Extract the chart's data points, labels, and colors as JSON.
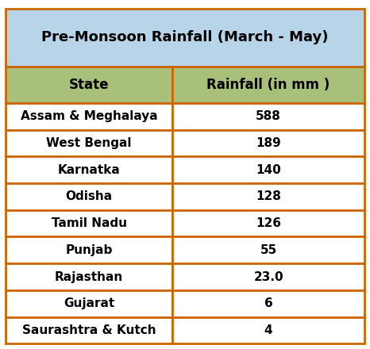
{
  "title": "Pre-Monsoon Rainfall (March - May)",
  "title_bg": "#b8d4e8",
  "header_bg": "#a8c07a",
  "row_bg": "#ffffff",
  "border_color": "#cc6600",
  "text_color": "#000000",
  "header_cols": [
    "State",
    "Rainfall (in mm )"
  ],
  "rows": [
    [
      "Assam & Meghalaya",
      "588"
    ],
    [
      "West Bengal",
      "189"
    ],
    [
      "Karnatka",
      "140"
    ],
    [
      "Odisha",
      "128"
    ],
    [
      "Tamil Nadu",
      "126"
    ],
    [
      "Punjab",
      "55"
    ],
    [
      "Rajasthan",
      "23.0"
    ],
    [
      "Gujarat",
      "6"
    ],
    [
      "Saurashtra & Kutch",
      "4"
    ]
  ],
  "figsize": [
    4.66,
    4.4
  ],
  "dpi": 100,
  "title_fontsize": 13,
  "header_fontsize": 12,
  "cell_fontsize": 11,
  "col_split": 0.465
}
